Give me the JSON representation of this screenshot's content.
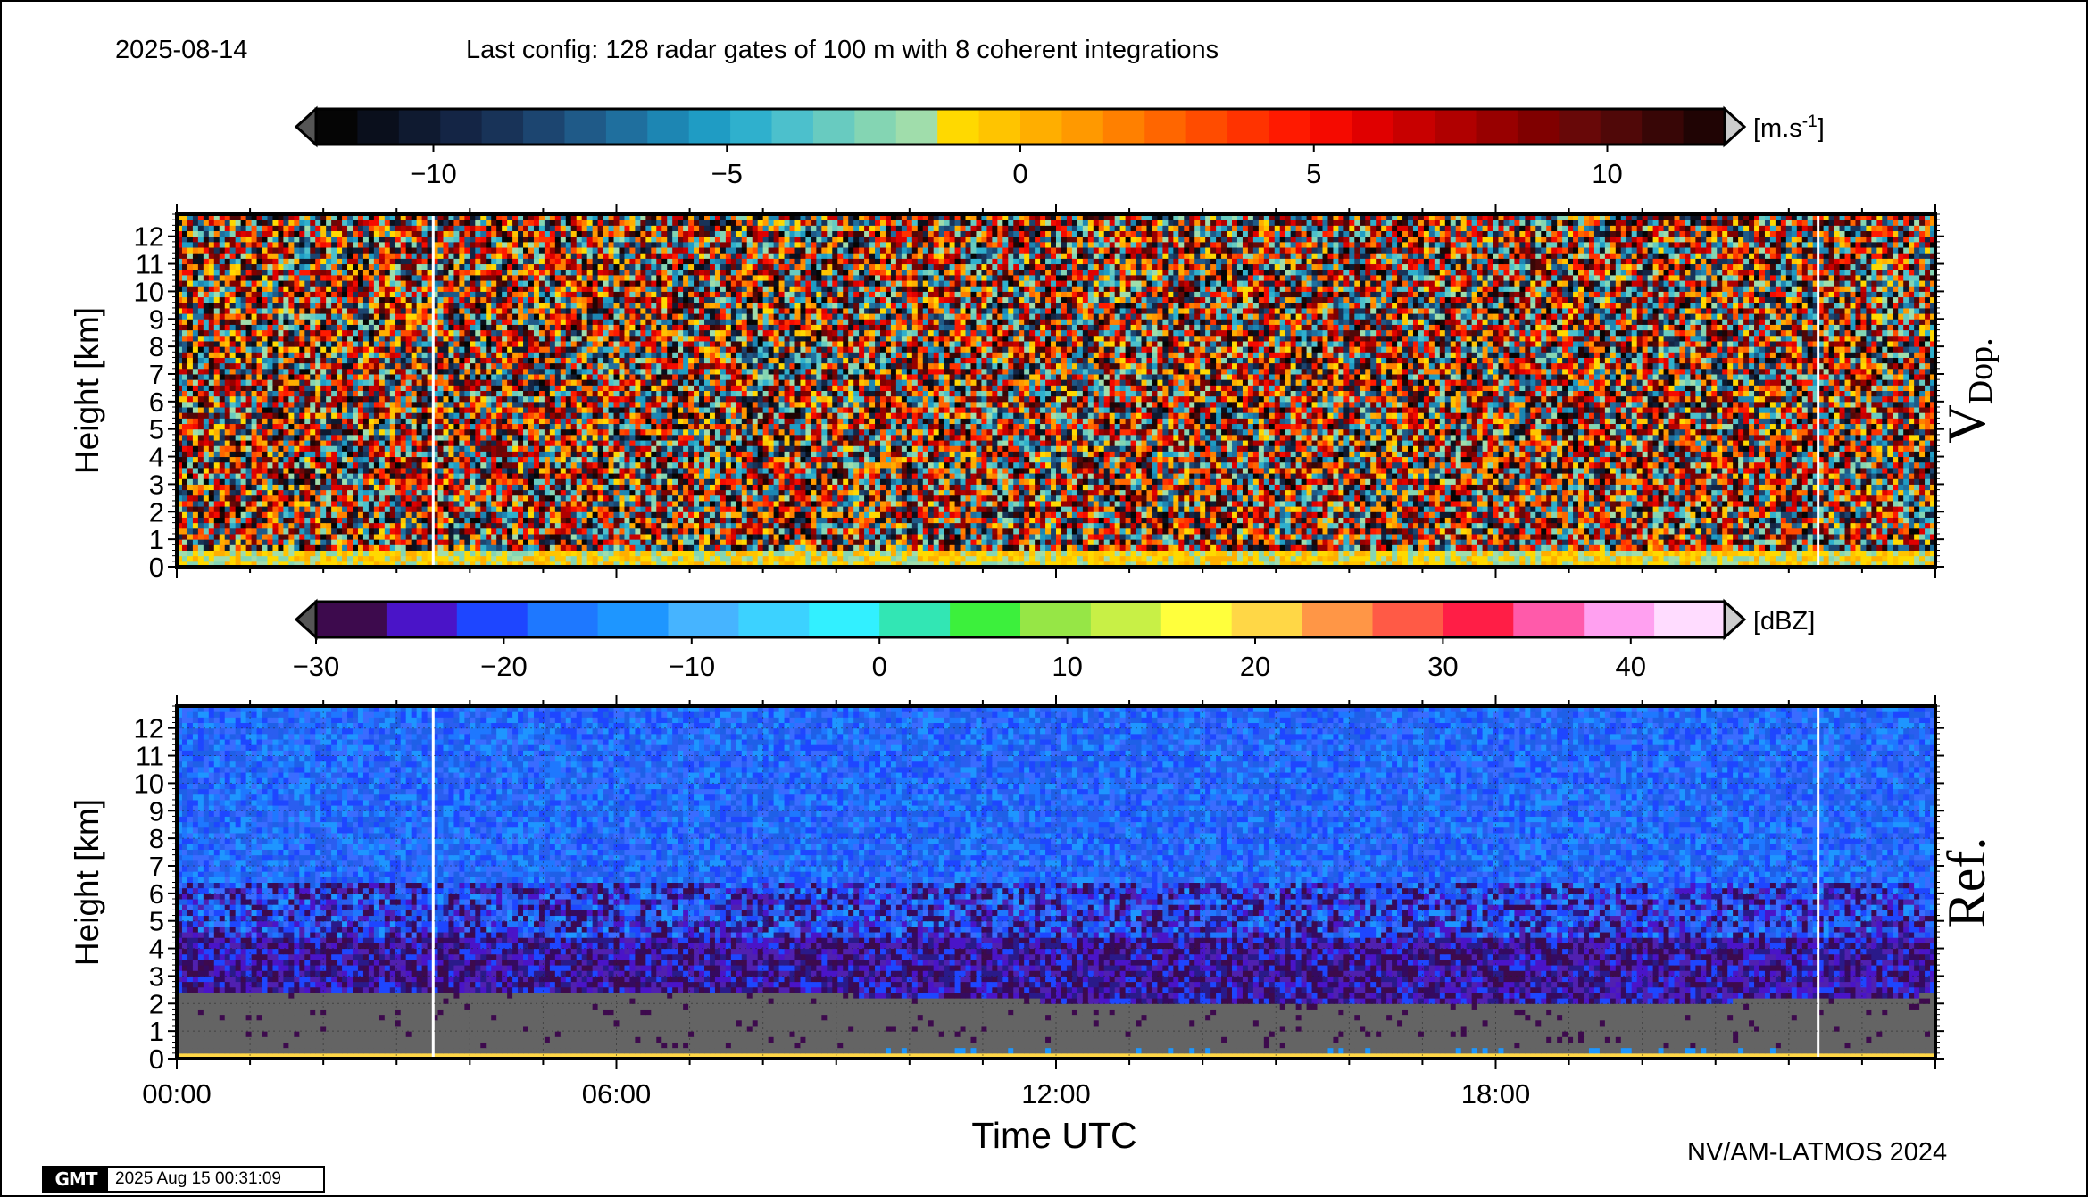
{
  "header": {
    "date": "2025-08-14",
    "config": "Last config: 128 radar gates of 100 m with 8 coherent integrations"
  },
  "footer": {
    "credit": "NV/AM-LATMOS 2024",
    "gmt_logo": "GMT",
    "timestamp": "2025 Aug 15 00:31:09"
  },
  "chart_data": [
    {
      "type": "heatmap",
      "panel_label": "V",
      "panel_label_sub": "Dop.",
      "ylabel": "Height [km]",
      "yticks": [
        0,
        1,
        2,
        3,
        4,
        5,
        6,
        7,
        8,
        9,
        10,
        11,
        12
      ],
      "ylim": [
        0,
        12.8
      ],
      "xlim": [
        0,
        24
      ],
      "colorbar": {
        "unit": "[m.s",
        "unit_sup": "-1",
        "unit_close": "]",
        "range": [
          -12,
          12
        ],
        "ticks": [
          -10,
          -5,
          0,
          5,
          10
        ],
        "tick_labels": [
          "−10",
          "−5",
          "0",
          "5",
          "10"
        ],
        "colors": [
          "#050505",
          "#0a0f1c",
          "#0f1a30",
          "#142545",
          "#183358",
          "#1c4570",
          "#1f5a88",
          "#1f6f9e",
          "#1d86b3",
          "#1f9cc4",
          "#2fb0cd",
          "#4cc0cc",
          "#68cbc0",
          "#84d5b3",
          "#a0ddab",
          "#ffd900",
          "#ffc400",
          "#ffae00",
          "#ff9900",
          "#ff8000",
          "#ff6600",
          "#ff4c00",
          "#ff3300",
          "#ff1a00",
          "#f50a00",
          "#e00000",
          "#c80000",
          "#b00000",
          "#980000",
          "#800000",
          "#680808",
          "#500808",
          "#380606",
          "#200404"
        ],
        "out_low": "#555555",
        "out_high": "#cccccc"
      },
      "description_pattern": "random noise above ~0.6 km, near-surface band of small positive velocities",
      "gaps_hours": [
        3.5,
        22.4
      ]
    },
    {
      "type": "heatmap",
      "panel_label": "Ref.",
      "ylabel": "Height [km]",
      "xlabel": "Time UTC",
      "yticks": [
        0,
        1,
        2,
        3,
        4,
        5,
        6,
        7,
        8,
        9,
        10,
        11,
        12
      ],
      "ylim": [
        0,
        12.8
      ],
      "xlim": [
        0,
        24
      ],
      "xticks": [
        0,
        6,
        12,
        18
      ],
      "xtick_labels": [
        "00:00",
        "06:00",
        "12:00",
        "18:00"
      ],
      "colorbar": {
        "unit": "[dBZ]",
        "range": [
          -30,
          45
        ],
        "ticks": [
          -30,
          -20,
          -10,
          0,
          10,
          20,
          30,
          40
        ],
        "tick_labels": [
          "−30",
          "−20",
          "−10",
          "0",
          "10",
          "20",
          "30",
          "40"
        ],
        "colors": [
          "#3d0a4d",
          "#4a14c8",
          "#1e46ff",
          "#1e78ff",
          "#1e96ff",
          "#46b4ff",
          "#3cd2ff",
          "#32f0ff",
          "#32e6b4",
          "#3cf03c",
          "#96e646",
          "#c8f046",
          "#ffff3c",
          "#ffd746",
          "#ff9646",
          "#ff5a46",
          "#ff1e46",
          "#ff5aaa",
          "#ffa0f0",
          "#ffdcff"
        ],
        "out_low": "#555555",
        "out_high": "#cccccc"
      },
      "below_threshold_color": "#646464",
      "description_pattern": "blue clear-air echoes aloft fading to purple below ~4 km, grey below ~2 km",
      "gaps_hours": [
        3.5,
        22.4
      ]
    }
  ]
}
